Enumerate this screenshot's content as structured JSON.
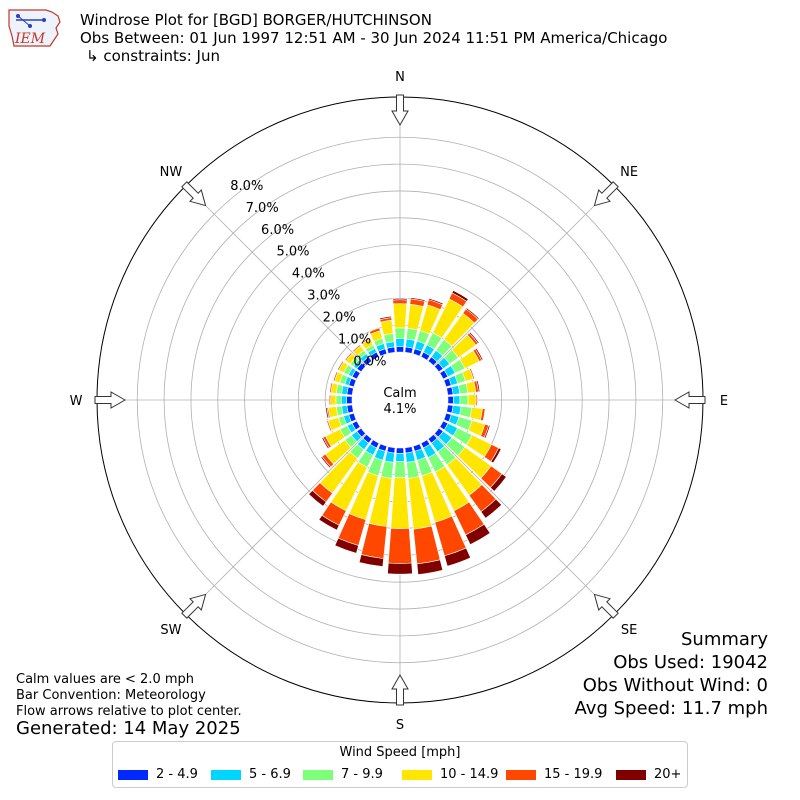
{
  "header": {
    "logo_text": "IEM",
    "title": "Windrose Plot for [BGD] BORGER/HUTCHINSON",
    "obs_range": "Obs Between: 01 Jun 1997 12:51 AM - 30 Jun 2024 11:51 PM America/Chicago",
    "constraints": "↳ constraints: Jun"
  },
  "summary": {
    "title": "Summary",
    "obs_used": "Obs Used: 19042",
    "obs_without_wind": "Obs Without Wind: 0",
    "avg_speed": "Avg Speed: 11.7 mph"
  },
  "notes": {
    "calm_note": "Calm values are < 2.0 mph",
    "bar_convention": "Bar Convention: Meteorology",
    "flow_arrows": "Flow arrows relative to plot center.",
    "generated": "Generated: 14 May 2025"
  },
  "legend": {
    "title": "Wind Speed [mph]",
    "items": [
      {
        "label": "2 - 4.9",
        "color": "#0029ff"
      },
      {
        "label": "5 - 6.9",
        "color": "#00d5ff"
      },
      {
        "label": "7 - 9.9",
        "color": "#7dff7a"
      },
      {
        "label": "10 - 14.9",
        "color": "#ffe600"
      },
      {
        "label": "15 - 19.9",
        "color": "#ff4700"
      },
      {
        "label": "20+",
        "color": "#800000"
      }
    ]
  },
  "chart_data": {
    "type": "windrose",
    "calm_label": "Calm",
    "calm_value": "4.1%",
    "radial_ticks": [
      "0.0%",
      "1.0%",
      "2.0%",
      "3.0%",
      "4.0%",
      "5.0%",
      "6.0%",
      "7.0%",
      "8.0%"
    ],
    "rmax": 9.5,
    "compass_labels": [
      "N",
      "NE",
      "E",
      "SE",
      "S",
      "SW",
      "W",
      "NW"
    ],
    "directions_deg": [
      0,
      10,
      20,
      30,
      40,
      50,
      60,
      70,
      80,
      90,
      100,
      110,
      120,
      130,
      140,
      150,
      160,
      170,
      180,
      190,
      200,
      210,
      220,
      230,
      240,
      250,
      260,
      270,
      280,
      290,
      300,
      310,
      320,
      330,
      340,
      350
    ],
    "series": [
      {
        "name": "2 - 4.9",
        "values": [
          0.2,
          0.2,
          0.2,
          0.2,
          0.2,
          0.2,
          0.2,
          0.2,
          0.2,
          0.2,
          0.2,
          0.2,
          0.2,
          0.2,
          0.2,
          0.2,
          0.2,
          0.2,
          0.2,
          0.2,
          0.2,
          0.2,
          0.2,
          0.2,
          0.2,
          0.2,
          0.2,
          0.2,
          0.2,
          0.2,
          0.2,
          0.2,
          0.2,
          0.2,
          0.2,
          0.2
        ]
      },
      {
        "name": "5 - 6.9",
        "values": [
          0.3,
          0.3,
          0.3,
          0.3,
          0.3,
          0.3,
          0.3,
          0.25,
          0.25,
          0.25,
          0.3,
          0.3,
          0.4,
          0.4,
          0.4,
          0.4,
          0.35,
          0.35,
          0.3,
          0.35,
          0.35,
          0.3,
          0.3,
          0.25,
          0.2,
          0.2,
          0.2,
          0.2,
          0.2,
          0.15,
          0.15,
          0.15,
          0.15,
          0.15,
          0.2,
          0.2
        ]
      },
      {
        "name": "7 - 9.9",
        "values": [
          0.4,
          0.4,
          0.4,
          0.5,
          0.5,
          0.4,
          0.4,
          0.3,
          0.3,
          0.3,
          0.4,
          0.5,
          0.6,
          0.6,
          0.6,
          0.6,
          0.6,
          0.6,
          0.6,
          0.6,
          0.6,
          0.5,
          0.4,
          0.3,
          0.3,
          0.2,
          0.2,
          0.2,
          0.2,
          0.2,
          0.2,
          0.15,
          0.15,
          0.15,
          0.2,
          0.3
        ]
      },
      {
        "name": "10 - 14.9",
        "values": [
          0.9,
          0.9,
          1.0,
          1.4,
          1.2,
          0.8,
          0.6,
          0.3,
          0.3,
          0.3,
          0.4,
          0.5,
          0.8,
          1.2,
          1.4,
          1.6,
          1.8,
          1.9,
          1.9,
          1.8,
          1.7,
          1.8,
          1.6,
          0.9,
          0.6,
          0.4,
          0.3,
          0.2,
          0.2,
          0.2,
          0.2,
          0.2,
          0.2,
          0.25,
          0.3,
          0.5
        ]
      },
      {
        "name": "15 - 19.9",
        "values": [
          0.15,
          0.2,
          0.2,
          0.25,
          0.2,
          0.1,
          0.1,
          0.05,
          0.1,
          0.05,
          0.1,
          0.15,
          0.3,
          0.5,
          0.75,
          1.0,
          1.3,
          1.3,
          1.3,
          1.2,
          1.0,
          0.6,
          0.4,
          0.15,
          0.1,
          0.05,
          0.05,
          0.05,
          0.05,
          0.05,
          0.05,
          0.05,
          0.05,
          0.05,
          0.1,
          0.1
        ]
      },
      {
        "name": "20+",
        "values": [
          0.05,
          0.05,
          0.05,
          0.1,
          0.05,
          0.05,
          0.05,
          0.0,
          0.05,
          0.0,
          0.0,
          0.05,
          0.1,
          0.2,
          0.3,
          0.4,
          0.4,
          0.4,
          0.4,
          0.3,
          0.3,
          0.2,
          0.2,
          0.05,
          0.05,
          0.0,
          0.05,
          0.0,
          0.0,
          0.0,
          0.0,
          0.0,
          0.0,
          0.0,
          0.0,
          0.05
        ]
      }
    ]
  }
}
